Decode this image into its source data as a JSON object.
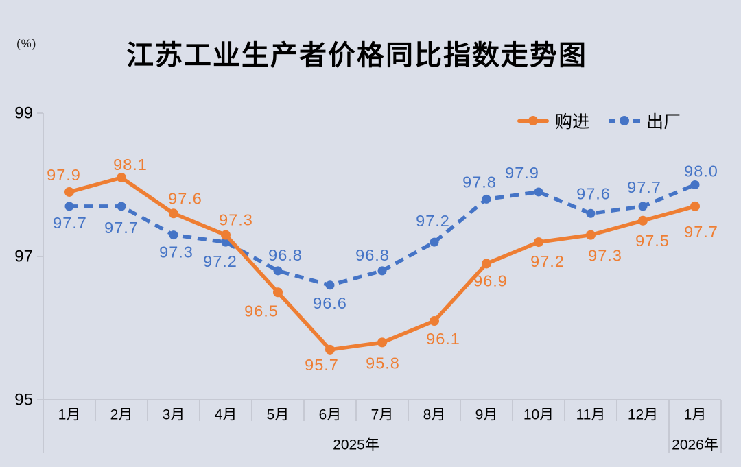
{
  "chart_data": {
    "type": "line",
    "title": "江苏工业生产者价格同比指数走势图",
    "unit_label": "(%)",
    "categories": [
      "1月",
      "2月",
      "3月",
      "4月",
      "5月",
      "6月",
      "7月",
      "8月",
      "9月",
      "10月",
      "11月",
      "12月",
      "1月"
    ],
    "year_labels": [
      {
        "text": "2025年",
        "start": 0,
        "end": 11
      },
      {
        "text": "2026年",
        "start": 12,
        "end": 12
      }
    ],
    "ylim": [
      95,
      99
    ],
    "yticks": [
      99,
      97,
      95
    ],
    "grid": false,
    "legend_position": "top-right",
    "series": [
      {
        "name": "购进",
        "style": "solid",
        "color": "#ee7e33",
        "values": [
          97.9,
          98.1,
          97.6,
          97.3,
          96.5,
          95.7,
          95.8,
          96.1,
          96.9,
          97.2,
          97.3,
          97.5,
          97.7
        ],
        "label_offsets": [
          [
            -8,
            -25
          ],
          [
            13,
            -19
          ],
          [
            17,
            -22
          ],
          [
            15,
            -22
          ],
          [
            -24,
            27
          ],
          [
            -12,
            22
          ],
          [
            1,
            30
          ],
          [
            13,
            26
          ],
          [
            6,
            25
          ],
          [
            13,
            28
          ],
          [
            21,
            30
          ],
          [
            14,
            29
          ],
          [
            9,
            37
          ]
        ]
      },
      {
        "name": "出厂",
        "style": "dashed",
        "color": "#4574c6",
        "values": [
          97.7,
          97.7,
          97.3,
          97.2,
          96.8,
          96.6,
          96.8,
          97.2,
          97.8,
          97.9,
          97.6,
          97.7,
          98.0
        ],
        "label_offsets": [
          [
            1,
            24
          ],
          [
            0,
            31
          ],
          [
            4,
            25
          ],
          [
            -8,
            28
          ],
          [
            11,
            -23
          ],
          [
            0,
            26
          ],
          [
            -14,
            -23
          ],
          [
            -2,
            -31
          ],
          [
            -10,
            -25
          ],
          [
            -24,
            -28
          ],
          [
            4,
            -29
          ],
          [
            2,
            -28
          ],
          [
            9,
            -20
          ]
        ]
      }
    ],
    "colors": {
      "background": "#dbdfe9",
      "axis": "#c6c9d3",
      "text": "#000000"
    }
  }
}
